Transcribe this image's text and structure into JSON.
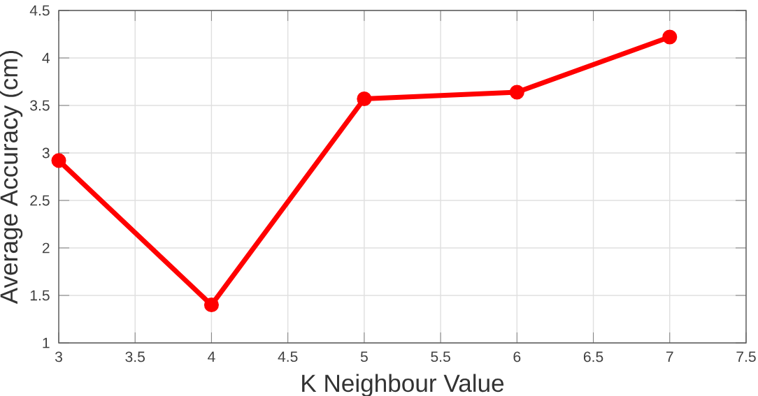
{
  "chart_data": {
    "type": "line",
    "xlabel": "K Neighbour Value",
    "ylabel": "Average Accuracy   (cm)",
    "x": [
      3,
      4,
      5,
      6,
      7
    ],
    "values": [
      2.92,
      1.4,
      3.57,
      3.64,
      4.22
    ],
    "color": "#ff0000",
    "marker": "circle",
    "grid": true,
    "xlim": [
      3,
      7.5
    ],
    "ylim": [
      1,
      4.5
    ],
    "xticks": [
      3,
      3.5,
      4,
      4.5,
      5,
      5.5,
      6,
      6.5,
      7,
      7.5
    ],
    "yticks": [
      1,
      1.5,
      2,
      2.5,
      3,
      3.5,
      4,
      4.5
    ]
  }
}
